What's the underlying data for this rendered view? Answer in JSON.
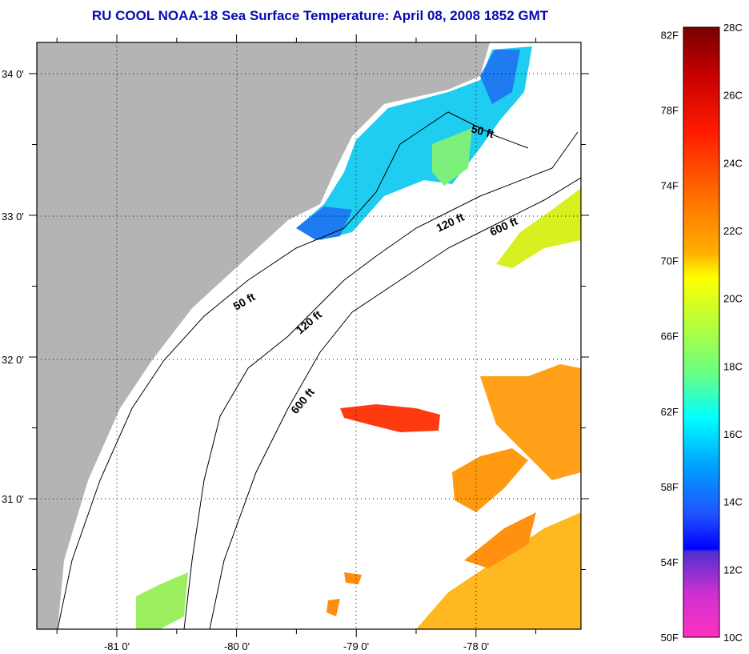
{
  "title": "RU COOL  NOAA-18  Sea Surface Temperature:  April 08, 2008 1852 GMT",
  "map": {
    "lon_labels": [
      "-81 0'",
      "-80 0'",
      "-79 0'",
      "-78 0'"
    ],
    "lat_labels": [
      "34 0'",
      "33 0'",
      "32 0'",
      "31 0'"
    ],
    "contour_labels": [
      "50 ft",
      "50 ft",
      "120 ft",
      "120 ft",
      "600 ft",
      "600 ft"
    ],
    "colors": {
      "land": "#b4b4b4",
      "cold": "#1ec8f0",
      "warm": "#ff8c14",
      "hot": "#ff3a10"
    }
  },
  "colorbar": {
    "f_labels": [
      "82F",
      "78F",
      "74F",
      "70F",
      "66F",
      "62F",
      "58F",
      "54F",
      "50F"
    ],
    "c_labels": [
      "28C",
      "26C",
      "24C",
      "22C",
      "20C",
      "18C",
      "16C",
      "14C",
      "12C",
      "10C"
    ],
    "range_c": [
      10,
      28
    ]
  }
}
